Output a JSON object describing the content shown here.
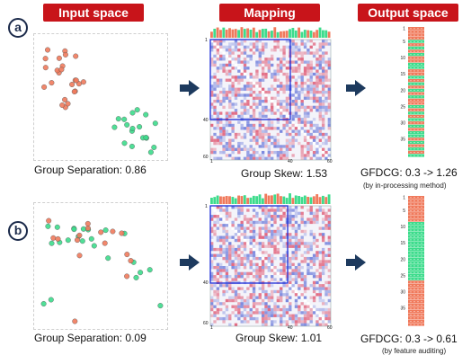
{
  "headers": {
    "input": "Input space",
    "mapping": "Mapping",
    "output": "Output space"
  },
  "rows": [
    {
      "label": "a",
      "input_caption": "Group Separation: 0.86",
      "mapping_caption": "Group Skew: 1.53",
      "output_caption": "GFDCG: 0.3 -> 1.26",
      "output_note": "(by in-processing method)"
    },
    {
      "label": "b",
      "input_caption": "Group Separation: 0.09",
      "mapping_caption": "Group Skew: 1.01",
      "output_caption": "GFDCG: 0.3 -> 0.61",
      "output_note": "(by feature auditing)"
    }
  ],
  "matrix_ticks": {
    "y": [
      "1",
      "40",
      "60"
    ],
    "x": [
      "1",
      "40",
      "60"
    ]
  },
  "ranking_ticks": [
    "1",
    "5",
    "10",
    "15",
    "20",
    "25",
    "30",
    "35"
  ],
  "colors": {
    "header": "#c8141a",
    "group_a": "#f07a5c",
    "group_b": "#3ddc8c",
    "arrow": "#1d3a5e",
    "highlight_box": "#1a2bd8"
  }
}
